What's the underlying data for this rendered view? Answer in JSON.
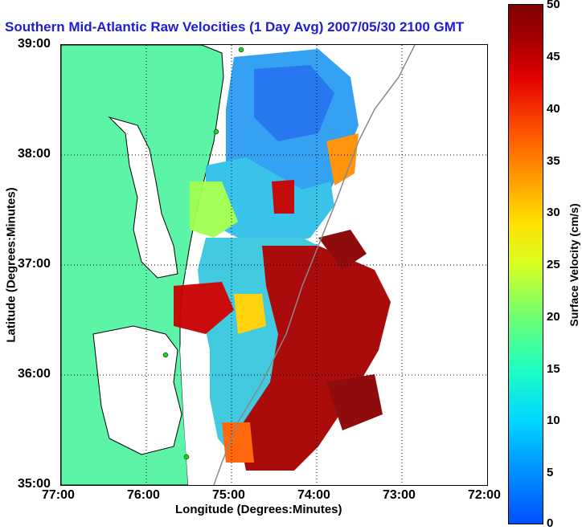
{
  "title": "Southern Mid-Atlantic Raw Velocities (1 Day Avg) 2007/05/30 2100 GMT",
  "x_axis": {
    "label": "Longitude (Degrees:Minutes)",
    "ticks": [
      "77:00",
      "76:00",
      "75:00",
      "74:00",
      "73:00",
      "72:00"
    ]
  },
  "y_axis": {
    "label": "Latitude (Degrees:Minutes)",
    "ticks": [
      "39:00",
      "38:00",
      "37:00",
      "36:00",
      "35:00"
    ]
  },
  "colorbar": {
    "label": "Surface Velocity (cm/s)",
    "ticks": [
      "50",
      "45",
      "40",
      "35",
      "30",
      "25",
      "20",
      "15",
      "10",
      "5",
      "0"
    ],
    "range": [
      0,
      50
    ]
  },
  "colors": {
    "land": "#5cf5a8",
    "coast": "#000000",
    "title": "#1d1dd6",
    "station": "#22cc22"
  },
  "legend_items": [],
  "map_extent": {
    "lon": [
      -77,
      -72
    ],
    "lat": [
      35,
      39
    ]
  }
}
